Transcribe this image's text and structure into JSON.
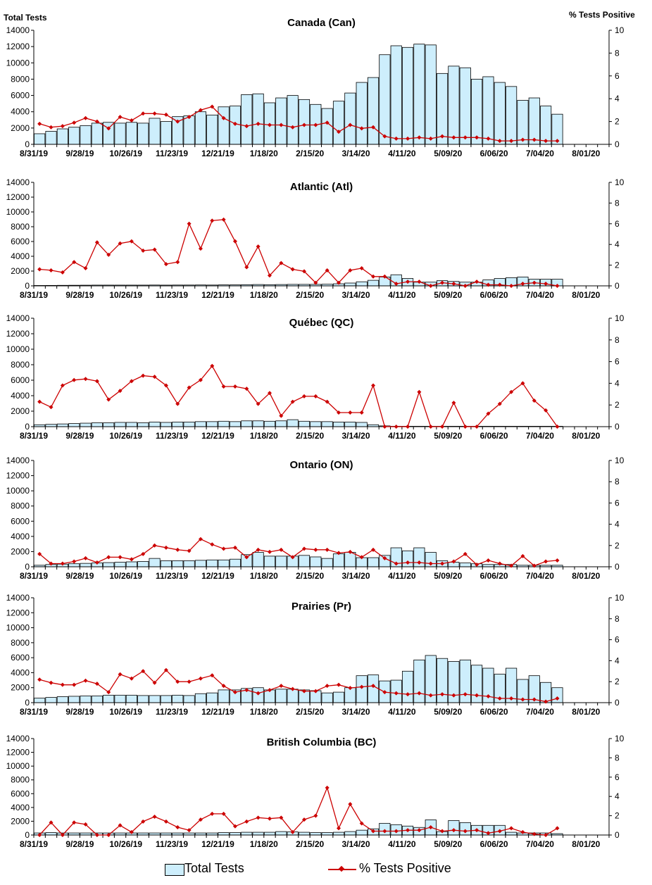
{
  "left_axis_title": "Total Tests",
  "right_axis_title": "% Tests Positive",
  "legend": {
    "bars_label": "Total Tests",
    "line_label": "% Tests Positive"
  },
  "colors": {
    "bar_fill": "#cdeefc",
    "bar_stroke": "#000000",
    "line": "#cc0000",
    "axis": "#000000"
  },
  "x_tick_labels": [
    "8/31/19",
    "9/28/19",
    "10/26/19",
    "11/23/19",
    "12/21/19",
    "1/18/20",
    "2/15/20",
    "3/14/20",
    "4/11/20",
    "5/09/20",
    "6/06/20",
    "7/04/20",
    "8/01/20"
  ],
  "chart_data": [
    {
      "type": "bar+line",
      "title": "Canada (Can)",
      "y_left_ticks": [
        0,
        2000,
        4000,
        6000,
        8000,
        10000,
        12000,
        14000
      ],
      "y_right_ticks": [
        0,
        2,
        4,
        6,
        8,
        10
      ],
      "ylim_left": [
        0,
        14000
      ],
      "ylim_right": [
        0,
        10
      ],
      "total_tests": [
        1300,
        1600,
        1900,
        2100,
        2300,
        2600,
        2700,
        2600,
        2700,
        2600,
        3200,
        2800,
        3400,
        3500,
        4000,
        3600,
        4600,
        4700,
        6100,
        6200,
        5100,
        5700,
        6000,
        5500,
        4900,
        4400,
        5300,
        6300,
        7600,
        8200,
        11000,
        12100,
        11900,
        12300,
        12200,
        8700,
        9600,
        9400,
        8000,
        8300,
        7600,
        7100,
        5400,
        5700,
        4700,
        3700
      ],
      "pct_positive": [
        1.8,
        1.5,
        1.6,
        1.9,
        2.3,
        2.0,
        1.4,
        2.4,
        2.1,
        2.7,
        2.7,
        2.6,
        2.0,
        2.4,
        3.0,
        3.3,
        2.3,
        1.8,
        1.6,
        1.8,
        1.7,
        1.7,
        1.5,
        1.7,
        1.7,
        1.9,
        1.1,
        1.7,
        1.4,
        1.5,
        0.7,
        0.5,
        0.5,
        0.6,
        0.5,
        0.7,
        0.6,
        0.6,
        0.6,
        0.5,
        0.3,
        0.3,
        0.4,
        0.4,
        0.3,
        0.3
      ]
    },
    {
      "type": "bar+line",
      "title": "Atlantic (Atl)",
      "y_left_ticks": [
        0,
        2000,
        4000,
        6000,
        8000,
        10000,
        12000,
        14000
      ],
      "y_right_ticks": [
        0,
        2,
        4,
        6,
        8,
        10
      ],
      "ylim_left": [
        0,
        14000
      ],
      "ylim_right": [
        0,
        10
      ],
      "total_tests": [
        50,
        60,
        70,
        80,
        90,
        100,
        100,
        100,
        100,
        100,
        110,
        100,
        110,
        110,
        120,
        110,
        130,
        130,
        160,
        180,
        160,
        180,
        200,
        200,
        200,
        220,
        280,
        380,
        550,
        750,
        1200,
        1500,
        1000,
        500,
        500,
        700,
        600,
        500,
        500,
        800,
        1000,
        1100,
        1200,
        900,
        900,
        900
      ],
      "pct_positive": [
        1.6,
        1.5,
        1.3,
        2.3,
        1.7,
        4.2,
        3.0,
        4.1,
        4.3,
        3.4,
        3.5,
        2.1,
        2.3,
        6.0,
        3.6,
        6.3,
        6.4,
        4.3,
        1.8,
        3.8,
        1.0,
        2.2,
        1.6,
        1.4,
        0.3,
        1.5,
        0.3,
        1.5,
        1.7,
        0.9,
        0.9,
        0.2,
        0.4,
        0.4,
        0.0,
        0.3,
        0.2,
        0.0,
        0.4,
        0.1,
        0.1,
        0.0,
        0.2,
        0.3,
        0.2,
        0.0
      ]
    },
    {
      "type": "bar+line",
      "title": "Québec (QC)",
      "y_left_ticks": [
        0,
        2000,
        4000,
        6000,
        8000,
        10000,
        12000,
        14000
      ],
      "y_right_ticks": [
        0,
        2,
        4,
        6,
        8,
        10
      ],
      "ylim_left": [
        0,
        14000
      ],
      "ylim_right": [
        0,
        10
      ],
      "total_tests": [
        250,
        300,
        350,
        400,
        450,
        500,
        500,
        550,
        550,
        500,
        600,
        550,
        600,
        600,
        650,
        650,
        700,
        650,
        750,
        750,
        700,
        750,
        900,
        700,
        650,
        650,
        600,
        600,
        550,
        250,
        100,
        50,
        50,
        50,
        50,
        50,
        50,
        50,
        50,
        50,
        50,
        50,
        50,
        50,
        50,
        50
      ],
      "pct_positive": [
        2.3,
        1.8,
        3.8,
        4.3,
        4.4,
        4.2,
        2.5,
        3.3,
        4.2,
        4.7,
        4.6,
        3.8,
        2.1,
        3.6,
        4.3,
        5.6,
        3.7,
        3.7,
        3.5,
        2.1,
        3.1,
        1.0,
        2.3,
        2.8,
        2.8,
        2.3,
        1.3,
        1.3,
        1.3,
        3.8,
        0.0,
        0.0,
        0.0,
        3.2,
        0.0,
        0.0,
        2.2,
        0.0,
        0.0,
        1.2,
        2.1,
        3.2,
        4.0,
        2.4,
        1.5,
        0.0
      ]
    },
    {
      "type": "bar+line",
      "title": "Ontario (ON)",
      "y_left_ticks": [
        0,
        2000,
        4000,
        6000,
        8000,
        10000,
        12000,
        14000
      ],
      "y_right_ticks": [
        0,
        2,
        4,
        6,
        8,
        10
      ],
      "ylim_left": [
        0,
        14000
      ],
      "ylim_right": [
        0,
        10
      ],
      "total_tests": [
        200,
        300,
        350,
        400,
        450,
        500,
        550,
        600,
        650,
        700,
        1100,
        800,
        800,
        800,
        850,
        900,
        900,
        1000,
        1600,
        1900,
        1400,
        1400,
        1400,
        1500,
        1300,
        1100,
        1700,
        1900,
        1200,
        1200,
        1500,
        2500,
        2100,
        2500,
        1900,
        800,
        600,
        500,
        400,
        300,
        300,
        300,
        200,
        200,
        200,
        200
      ],
      "pct_positive": [
        1.2,
        0.3,
        0.3,
        0.5,
        0.8,
        0.4,
        0.9,
        0.9,
        0.7,
        1.2,
        2.0,
        1.8,
        1.6,
        1.5,
        2.6,
        2.1,
        1.7,
        1.8,
        0.9,
        1.6,
        1.4,
        1.6,
        0.9,
        1.7,
        1.6,
        1.6,
        1.3,
        1.4,
        0.9,
        1.6,
        0.8,
        0.3,
        0.4,
        0.4,
        0.3,
        0.3,
        0.5,
        1.2,
        0.2,
        0.6,
        0.3,
        0.1,
        1.0,
        0.1,
        0.5,
        0.6
      ]
    },
    {
      "type": "bar+line",
      "title": "Prairies (Pr)",
      "y_left_ticks": [
        0,
        2000,
        4000,
        6000,
        8000,
        10000,
        12000,
        14000
      ],
      "y_right_ticks": [
        0,
        2,
        4,
        6,
        8,
        10
      ],
      "ylim_left": [
        0,
        14000
      ],
      "ylim_right": [
        0,
        10
      ],
      "total_tests": [
        600,
        700,
        800,
        850,
        900,
        900,
        1000,
        1000,
        1000,
        950,
        950,
        950,
        1000,
        950,
        1200,
        1300,
        1700,
        1700,
        1900,
        2000,
        1700,
        1800,
        1800,
        1700,
        1600,
        1300,
        1400,
        2000,
        3600,
        3700,
        2900,
        3000,
        4200,
        5700,
        6300,
        5900,
        5500,
        5700,
        5000,
        4600,
        3800,
        4600,
        3100,
        3600,
        2700,
        2000
      ],
      "pct_positive": [
        2.2,
        1.9,
        1.7,
        1.7,
        2.1,
        1.8,
        1.0,
        2.7,
        2.3,
        3.0,
        1.9,
        3.1,
        2.0,
        2.0,
        2.3,
        2.6,
        1.6,
        1.0,
        1.2,
        0.9,
        1.2,
        1.6,
        1.3,
        1.1,
        1.1,
        1.6,
        1.7,
        1.4,
        1.5,
        1.6,
        1.0,
        0.9,
        0.8,
        0.9,
        0.7,
        0.8,
        0.7,
        0.8,
        0.7,
        0.6,
        0.4,
        0.4,
        0.3,
        0.3,
        0.1,
        0.4
      ]
    },
    {
      "type": "bar+line",
      "title": "British Columbia (BC)",
      "y_left_ticks": [
        0,
        2000,
        4000,
        6000,
        8000,
        10000,
        12000,
        14000
      ],
      "y_right_ticks": [
        0,
        2,
        4,
        6,
        8,
        10
      ],
      "ylim_left": [
        0,
        14000
      ],
      "ylim_right": [
        0,
        10
      ],
      "total_tests": [
        300,
        350,
        300,
        300,
        300,
        300,
        300,
        300,
        300,
        300,
        300,
        300,
        300,
        300,
        300,
        300,
        350,
        350,
        400,
        400,
        400,
        500,
        450,
        400,
        350,
        350,
        400,
        500,
        700,
        900,
        1700,
        1500,
        1300,
        1100,
        2200,
        500,
        2100,
        1800,
        1400,
        1400,
        1400,
        400,
        300,
        300,
        300,
        200
      ],
      "pct_positive": [
        0.0,
        1.3,
        0.0,
        1.3,
        1.1,
        0.0,
        0.0,
        1.0,
        0.3,
        1.4,
        1.9,
        1.4,
        0.8,
        0.5,
        1.6,
        2.2,
        2.2,
        0.9,
        1.4,
        1.8,
        1.7,
        1.8,
        0.3,
        1.6,
        2.0,
        4.9,
        0.7,
        3.2,
        1.2,
        0.4,
        0.4,
        0.4,
        0.5,
        0.5,
        0.8,
        0.4,
        0.5,
        0.4,
        0.5,
        0.2,
        0.4,
        0.7,
        0.3,
        0.1,
        0.0,
        0.7
      ]
    }
  ]
}
